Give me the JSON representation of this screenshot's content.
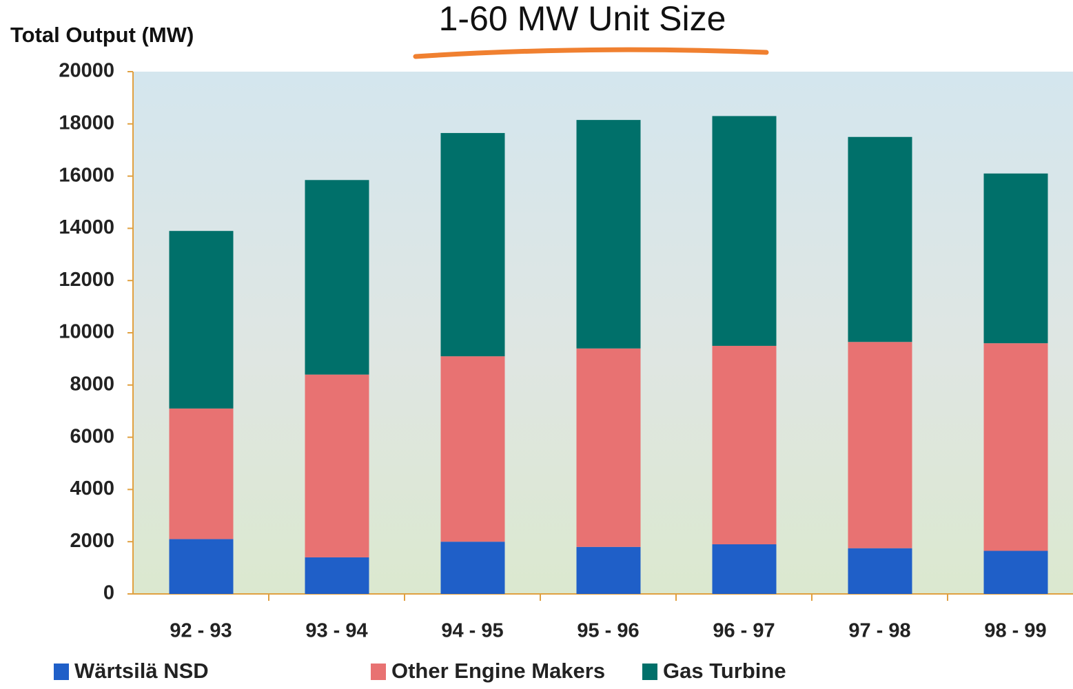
{
  "chart_data": {
    "type": "stacked_bar",
    "title": "1-60 MW Unit Size",
    "y_label": "Total Output (MW)",
    "categories": [
      "92 - 93",
      "93 - 94",
      "94 - 95",
      "95 - 96",
      "96 - 97",
      "97 - 98",
      "98 - 99"
    ],
    "series": [
      {
        "name": "Wärtsilä NSD",
        "color": "#1f5fc8",
        "values": [
          2100,
          1400,
          2000,
          1800,
          1900,
          1750,
          1650
        ]
      },
      {
        "name": "Other Engine Makers",
        "color": "#e87272",
        "values": [
          5000,
          7000,
          7100,
          7600,
          7600,
          7900,
          7950
        ]
      },
      {
        "name": "Gas Turbine",
        "color": "#00706a",
        "values": [
          6800,
          7450,
          8550,
          8750,
          8800,
          7850,
          6500
        ]
      }
    ],
    "ylim": [
      0,
      20000
    ],
    "yticks": [
      0,
      2000,
      4000,
      6000,
      8000,
      10000,
      12000,
      14000,
      16000,
      18000,
      20000
    ]
  }
}
